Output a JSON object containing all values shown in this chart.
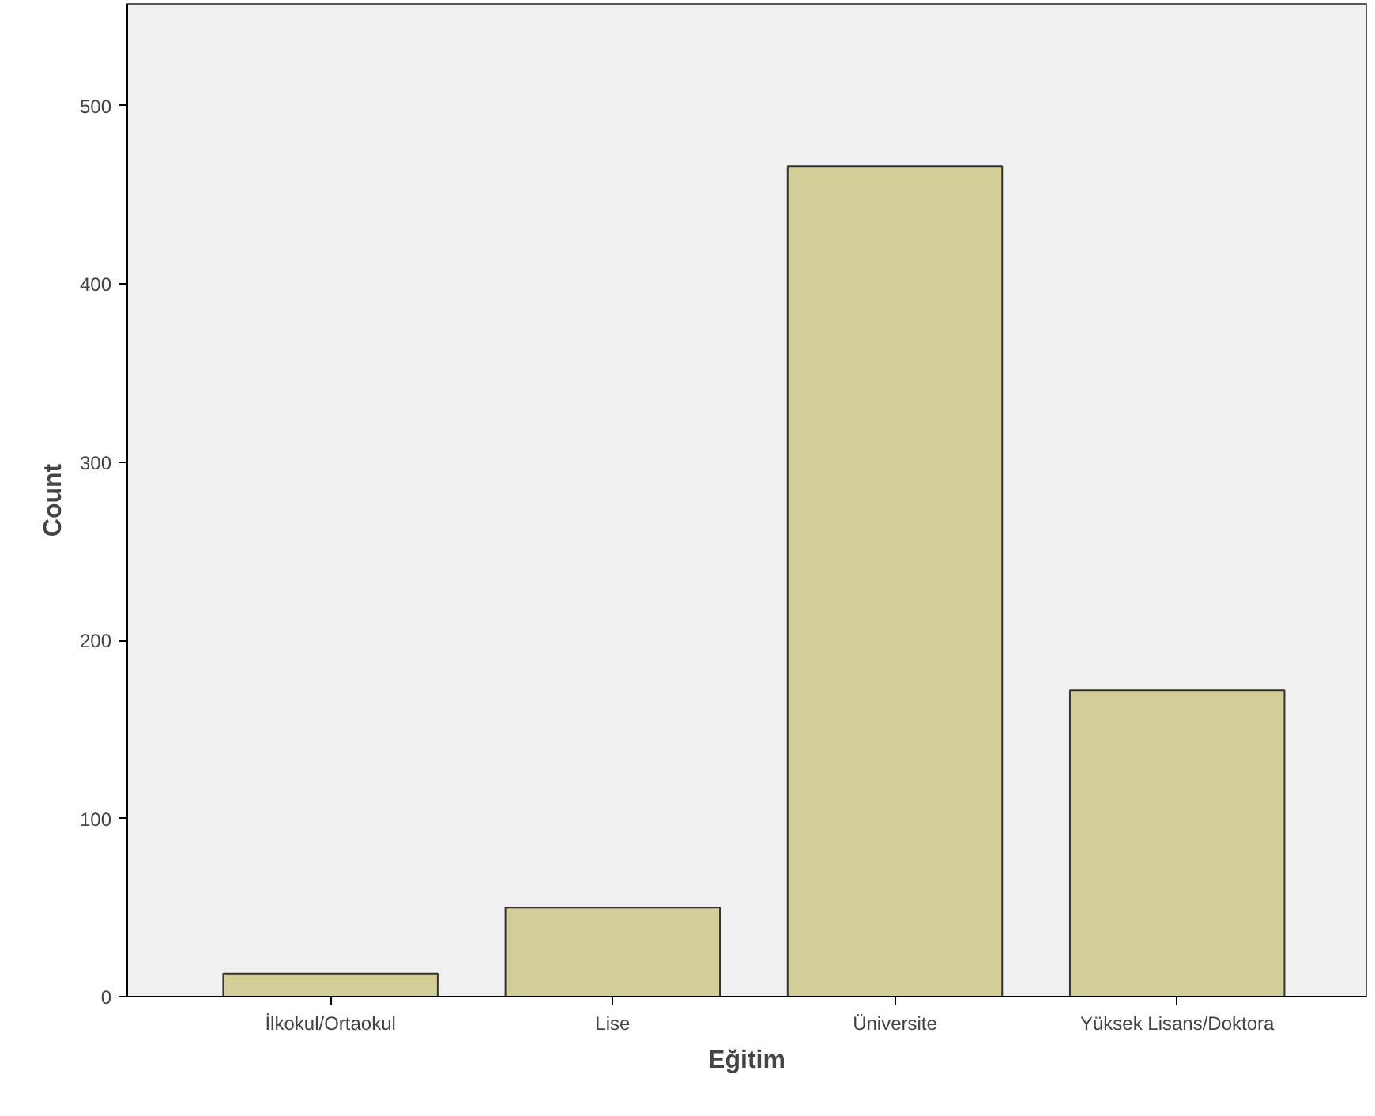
{
  "chart_data": {
    "type": "bar",
    "xlabel": "Eğitim",
    "ylabel": "Count",
    "categories": [
      "İlkokul/Ortaokul",
      "Lise",
      "Üniversite",
      "Yüksek Lisans/Doktora"
    ],
    "values": [
      13,
      50,
      466,
      172
    ],
    "color": "#d3ce98",
    "ylim": [
      0,
      557
    ],
    "yticks": [
      0,
      100,
      200,
      300,
      400,
      500
    ],
    "grid": false
  }
}
